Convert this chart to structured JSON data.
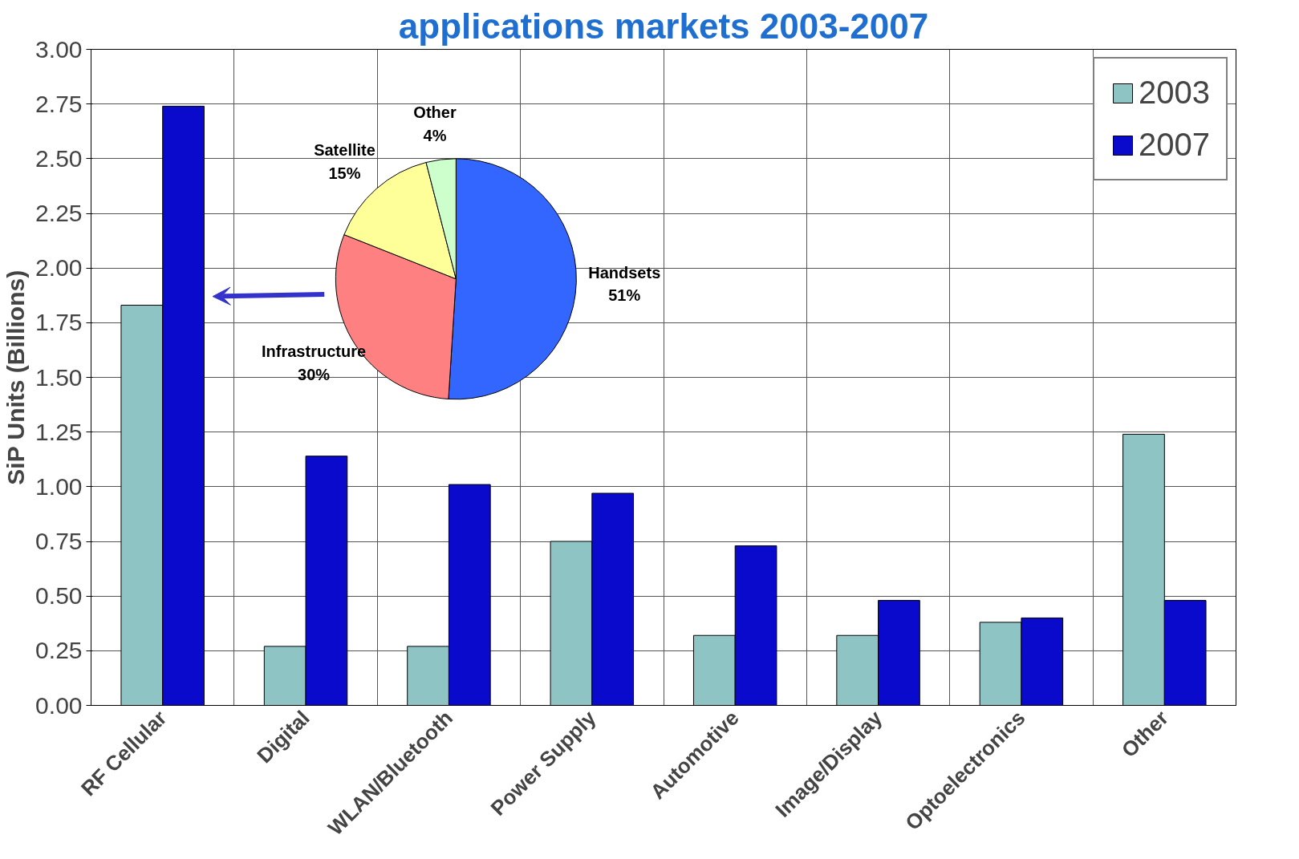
{
  "chart_data": [
    {
      "type": "bar",
      "title": "applications markets 2003-2007",
      "ylabel": "SiP Units (Billions)",
      "categories": [
        "RF Cellular",
        "Digital",
        "WLAN/Bluetooth",
        "Power Supply",
        "Automotive",
        "Image/Display",
        "Optoelectronics",
        "Other"
      ],
      "series": [
        {
          "name": "2003",
          "color": "#8fc4c4",
          "values": [
            1.83,
            0.27,
            0.27,
            0.75,
            0.32,
            0.32,
            0.38,
            1.24
          ]
        },
        {
          "name": "2007",
          "color": "#0a0acc",
          "values": [
            2.74,
            1.14,
            1.01,
            0.97,
            0.73,
            0.48,
            0.4,
            0.48
          ]
        }
      ],
      "ylim": [
        0,
        3
      ],
      "yticks": [
        {
          "value": 0,
          "label": "0.00"
        },
        {
          "value": 0.25,
          "label": "0.25"
        },
        {
          "value": 0.5,
          "label": "0.50"
        },
        {
          "value": 0.75,
          "label": "0.75"
        },
        {
          "value": 1,
          "label": "1.00"
        },
        {
          "value": 1.25,
          "label": "1.25"
        },
        {
          "value": 1.5,
          "label": "1.50"
        },
        {
          "value": 1.75,
          "label": "1.75"
        },
        {
          "value": 2,
          "label": "2.00"
        },
        {
          "value": 2.25,
          "label": "2.25"
        },
        {
          "value": 2.5,
          "label": "2.50"
        },
        {
          "value": 2.75,
          "label": "2.75"
        },
        {
          "value": 3,
          "label": "3.00"
        }
      ],
      "grid": true,
      "legend": "top right"
    },
    {
      "type": "pie",
      "categories": [
        "Handsets",
        "Infrastructure",
        "Satellite",
        "Other"
      ],
      "values": [
        51,
        30,
        15,
        4
      ],
      "colors": [
        "#3366ff",
        "#ff8080",
        "#ffff99",
        "#ccffcc"
      ],
      "value_labels": [
        "51%",
        "30%",
        "15%",
        "4%"
      ]
    }
  ]
}
